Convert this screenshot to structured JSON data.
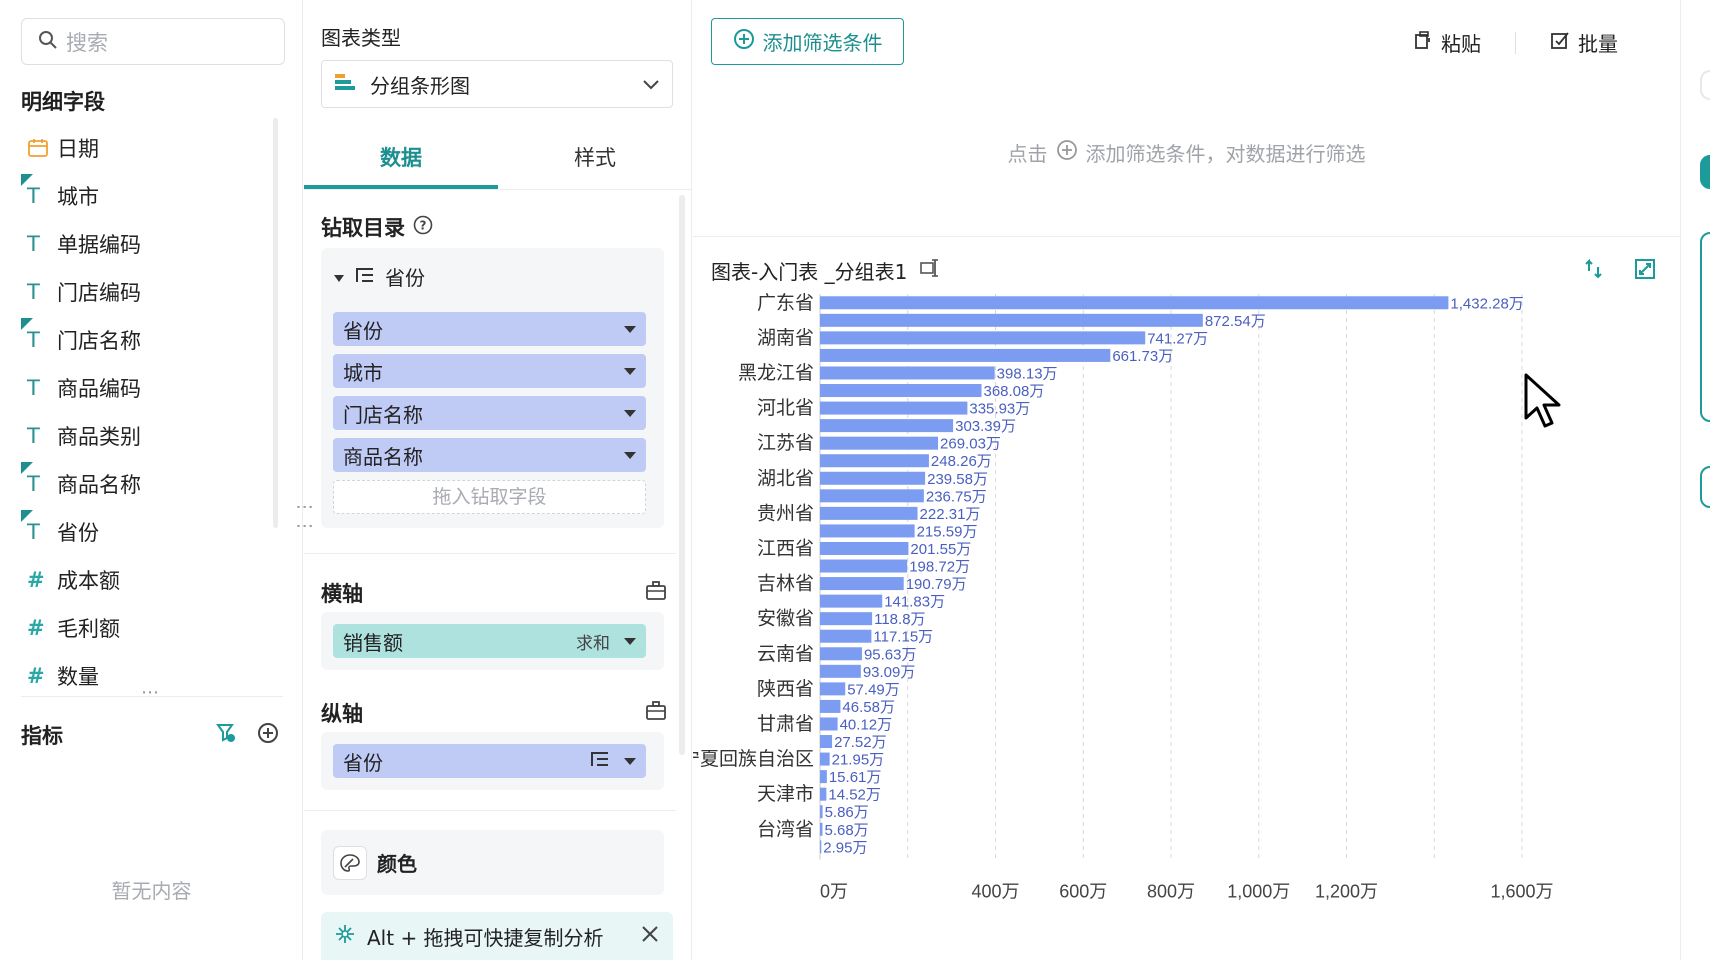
{
  "fields_panel": {
    "search_placeholder": "搜索",
    "detail_title": "明细字段",
    "items": [
      {
        "label": "日期",
        "type": "date",
        "flag": false
      },
      {
        "label": "城市",
        "type": "text",
        "flag": true
      },
      {
        "label": "单据编码",
        "type": "text",
        "flag": false
      },
      {
        "label": "门店编码",
        "type": "text",
        "flag": false
      },
      {
        "label": "门店名称",
        "type": "text",
        "flag": true
      },
      {
        "label": "商品编码",
        "type": "text",
        "flag": false
      },
      {
        "label": "商品类别",
        "type": "text",
        "flag": false
      },
      {
        "label": "商品名称",
        "type": "text",
        "flag": true
      },
      {
        "label": "省份",
        "type": "text",
        "flag": true
      },
      {
        "label": "成本额",
        "type": "number",
        "flag": false
      },
      {
        "label": "毛利额",
        "type": "number",
        "flag": false
      },
      {
        "label": "数量",
        "type": "number",
        "flag": false
      }
    ],
    "metrics_title": "指标",
    "empty_text": "暂无内容"
  },
  "config_panel": {
    "chart_type_label": "图表类型",
    "chart_type_value": "分组条形图",
    "tabs": [
      "数据",
      "样式"
    ],
    "active_tab": 0,
    "drill_title": "钻取目录",
    "drill_group": "省份",
    "drill_fields": [
      "省份",
      "城市",
      "门店名称",
      "商品名称"
    ],
    "drill_drop_placeholder": "拖入钻取字段",
    "x_axis_title": "横轴",
    "x_axis_field": "销售额",
    "x_axis_agg": "求和",
    "y_axis_title": "纵轴",
    "y_axis_field": "省份",
    "color_label": "颜色",
    "tip_text": "Alt + 拖拽可快捷复制分析"
  },
  "canvas": {
    "add_filter_label": "添加筛选条件",
    "paste_label": "粘贴",
    "batch_label": "批量",
    "filter_hint_prefix": "点击",
    "filter_hint_suffix": "添加筛选条件，对数据进行筛选",
    "chart_title": "图表-入门表 _分组表1"
  },
  "colors": {
    "accent": "#1d9a9a",
    "bar": "#7b9cf0",
    "value_label": "#4a5fc1",
    "pill_blue": "#bfcaf5",
    "pill_teal": "#aee2df"
  },
  "chart_data": {
    "type": "bar",
    "orientation": "horizontal",
    "unit": "万",
    "xlim": [
      0,
      1600
    ],
    "x_ticks": [
      0,
      400,
      600,
      800,
      1000,
      1200,
      1600
    ],
    "x_tick_labels": [
      "0万",
      "400万",
      "600万",
      "800万",
      "1,000万",
      "1,200万",
      "1,600万"
    ],
    "category_labels": [
      "广东省",
      "湖南省",
      "黑龙江省",
      "河北省",
      "江苏省",
      "湖北省",
      "贵州省",
      "江西省",
      "吉林省",
      "安徽省",
      "云南省",
      "陕西省",
      "甘肃省",
      "宁夏回族自治区",
      "天津市",
      "台湾省"
    ],
    "values": [
      1432.28,
      872.54,
      741.27,
      661.73,
      398.13,
      368.08,
      335.93,
      303.39,
      269.03,
      248.26,
      239.58,
      236.75,
      222.31,
      215.59,
      201.55,
      198.72,
      190.79,
      141.83,
      118.8,
      117.15,
      95.63,
      93.09,
      57.49,
      46.58,
      40.12,
      27.52,
      21.95,
      15.61,
      14.52,
      5.86,
      5.68,
      2.95
    ],
    "value_labels": [
      "1,432.28万",
      "872.54万",
      "741.27万",
      "661.73万",
      "398.13万",
      "368.08万",
      "335.93万",
      "303.39万",
      "269.03万",
      "248.26万",
      "239.58万",
      "236.75万",
      "222.31万",
      "215.59万",
      "201.55万",
      "198.72万",
      "190.79万",
      "141.83万",
      "118.8万",
      "117.15万",
      "95.63万",
      "93.09万",
      "57.49万",
      "46.58万",
      "40.12万",
      "27.52万",
      "21.95万",
      "15.61万",
      "14.52万",
      "5.86万",
      "5.68万",
      "2.95万"
    ],
    "grid": true
  }
}
